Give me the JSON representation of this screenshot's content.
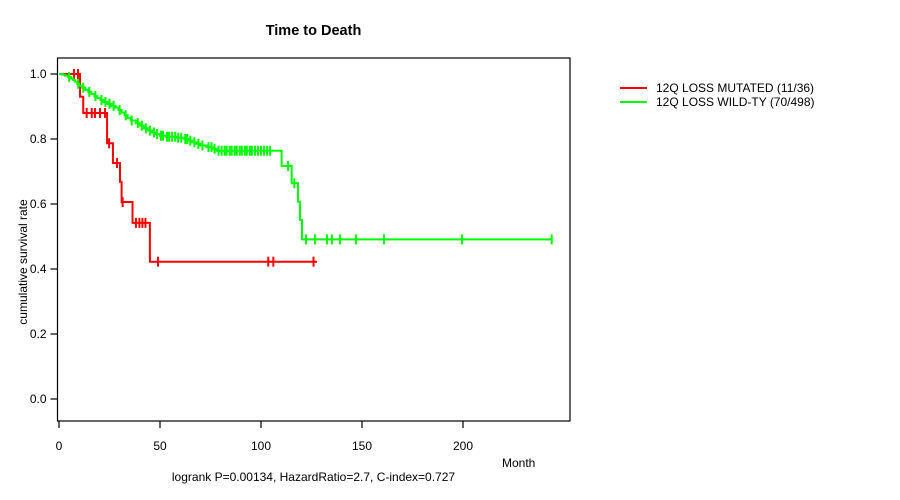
{
  "figure": {
    "title": "Time to Death",
    "footer": "logrank P=0.00134, HazardRatio=2.7, C-index=0.727"
  },
  "chart_data": {
    "type": "line",
    "subtype": "kaplan-meier-step-survival",
    "title": "Time to Death",
    "xlabel": "Month",
    "ylabel": "cumulative survival rate",
    "x_ticks": [
      0,
      50,
      100,
      150,
      200
    ],
    "y_ticks": [
      0.0,
      0.2,
      0.4,
      0.6,
      0.8,
      1.0
    ],
    "xlim": [
      0,
      254
    ],
    "ylim": [
      0,
      1.0
    ],
    "grid": false,
    "legend_position": "right-outside",
    "annotation": "logrank P=0.00134, HazardRatio=2.7, C-index=0.727",
    "axis_color": "#000000",
    "series": [
      {
        "name": "12Q LOSS MUTATED (11/36)",
        "color": "#ff0000",
        "steps": [
          [
            0,
            1.0
          ],
          [
            10.4,
            0.93
          ],
          [
            12,
            0.88
          ],
          [
            23.8,
            0.787
          ],
          [
            26.7,
            0.726
          ],
          [
            30.2,
            0.668
          ],
          [
            31,
            0.606
          ],
          [
            36.4,
            0.542
          ],
          [
            45,
            0.4225
          ]
        ],
        "end_time": 127.7,
        "censor_times": [
          7.4,
          9.4,
          13.7,
          16.2,
          17.8,
          20.3,
          22.8,
          24.8,
          28.7,
          31.5,
          38.1,
          39.8,
          41.3,
          42.8,
          49,
          103.6,
          106.1,
          126
        ]
      },
      {
        "name": "12Q LOSS WILD-TY (70/498)",
        "color": "#00ff00",
        "steps": [
          [
            0,
            1.0
          ],
          [
            1.5,
            0.998
          ],
          [
            3,
            0.995
          ],
          [
            4.5,
            0.991
          ],
          [
            6,
            0.986
          ],
          [
            7,
            0.981
          ],
          [
            8,
            0.976
          ],
          [
            9,
            0.97
          ],
          [
            10,
            0.964
          ],
          [
            11.5,
            0.958
          ],
          [
            13,
            0.951
          ],
          [
            14.5,
            0.945
          ],
          [
            16,
            0.939
          ],
          [
            17.5,
            0.932
          ],
          [
            19,
            0.926
          ],
          [
            20.5,
            0.92
          ],
          [
            22,
            0.914
          ],
          [
            24,
            0.908
          ],
          [
            26,
            0.902
          ],
          [
            28,
            0.897
          ],
          [
            29.5,
            0.889
          ],
          [
            31,
            0.881
          ],
          [
            32.5,
            0.873
          ],
          [
            34,
            0.865
          ],
          [
            35.5,
            0.857
          ],
          [
            38,
            0.849
          ],
          [
            40,
            0.841
          ],
          [
            42,
            0.833
          ],
          [
            44,
            0.826
          ],
          [
            46,
            0.82
          ],
          [
            48,
            0.815
          ],
          [
            50,
            0.81
          ],
          [
            53,
            0.807
          ],
          [
            58,
            0.804
          ],
          [
            62,
            0.8
          ],
          [
            64,
            0.795
          ],
          [
            66,
            0.79
          ],
          [
            68,
            0.785
          ],
          [
            70,
            0.78
          ],
          [
            73,
            0.775
          ],
          [
            76,
            0.77
          ],
          [
            78,
            0.764
          ],
          [
            110.2,
            0.717
          ],
          [
            115.2,
            0.664
          ],
          [
            118.3,
            0.607
          ],
          [
            119.3,
            0.551
          ],
          [
            120.3,
            0.491
          ]
        ],
        "end_time": 243.9,
        "censor_times": [
          5,
          9.5,
          12,
          15,
          18,
          21,
          23,
          25,
          27,
          30,
          33,
          36,
          39,
          41,
          43,
          45,
          47,
          48.5,
          50.5,
          51.5,
          53.5,
          54.5,
          56,
          57.5,
          59,
          60.5,
          62.5,
          63.5,
          65,
          67,
          69,
          71,
          74,
          75.5,
          77,
          79,
          80.5,
          82,
          83,
          84.5,
          85.5,
          87,
          88,
          89.5,
          90.5,
          92,
          93,
          94.5,
          95.5,
          97,
          98.5,
          100,
          101.5,
          103,
          104.5,
          113.4,
          116.5,
          122.3,
          126.7,
          132.7,
          135.1,
          139.1,
          147,
          160.9,
          199.5,
          243.9
        ]
      }
    ]
  }
}
